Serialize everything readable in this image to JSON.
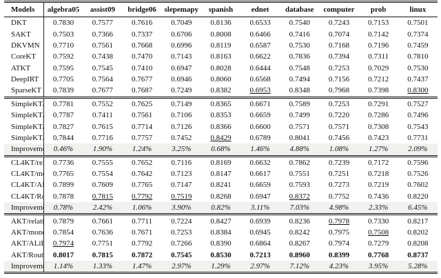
{
  "colors": {
    "text": "#111111",
    "rule": "#111111",
    "improvement_row_bg": "#f1f1ef"
  },
  "table": {
    "columns": [
      "Models",
      "algebra05",
      "assist09",
      "bridge06",
      "slepemapy",
      "spanish",
      "ednet",
      "database",
      "computer",
      "prob",
      "linux"
    ],
    "sections": [
      {
        "name": "baselines",
        "rows": [
          {
            "label": "DKT",
            "values": [
              "0.7830",
              "0.7577",
              "0.7616",
              "0.7049",
              "0.8136",
              "0.6533",
              "0.7540",
              "0.7243",
              "0.7153",
              "0.7501"
            ]
          },
          {
            "label": "SAKT",
            "values": [
              "0.7503",
              "0.7366",
              "0.7337",
              "0.6706",
              "0.8008",
              "0.6466",
              "0.7416",
              "0.7074",
              "0.7142",
              "0.7374"
            ]
          },
          {
            "label": "DKVMN",
            "values": [
              "0.7710",
              "0.7561",
              "0.7668",
              "0.6996",
              "0.8119",
              "0.6587",
              "0.7530",
              "0.7168",
              "0.7196",
              "0.7459"
            ]
          },
          {
            "label": "CoreKT",
            "values": [
              "0.7592",
              "0.7438",
              "0.7470",
              "0.7143",
              "0.8163",
              "0.6622",
              "0.7836",
              "0.7394",
              "0.7311",
              "0.7810"
            ]
          },
          {
            "label": "ATKT",
            "values": [
              "0.7595",
              "0.7545",
              "0.7410",
              "0.6947",
              "0.8028",
              "0.6444",
              "0.7548",
              "0.7253",
              "0.7029",
              "0.7530"
            ]
          },
          {
            "label": "DeepIRT",
            "values": [
              "0.7705",
              "0.7564",
              "0.7677",
              "0.6946",
              "0.8060",
              "0.6568",
              "0.7494",
              "0.7156",
              "0.7212",
              "0.7437"
            ]
          },
          {
            "label": "SparseKT",
            "values": [
              "0.7839",
              "0.7677",
              "0.7687",
              "0.7249",
              "0.8382",
              "0.6953",
              "0.8348",
              "0.7968",
              "0.7398",
              "0.8300"
            ],
            "underline": [
              5,
              9
            ]
          }
        ]
      },
      {
        "name": "simplekt",
        "rows": [
          {
            "label": "SimpleKT/relative",
            "values": [
              "0.7781",
              "0.7552",
              "0.7625",
              "0.7149",
              "0.8365",
              "0.6671",
              "0.7589",
              "0.7253",
              "0.7291",
              "0.7527"
            ]
          },
          {
            "label": "SimpleKT/monotonic",
            "values": [
              "0.7787",
              "0.7411",
              "0.7561",
              "0.7106",
              "0.8353",
              "0.6659",
              "0.7499",
              "0.7220",
              "0.7286",
              "0.7496"
            ]
          },
          {
            "label": "SimpleKT/ALiBi",
            "values": [
              "0.7827",
              "0.7615",
              "0.7714",
              "0.7126",
              "0.8366",
              "0.6600",
              "0.7571",
              "0.7571",
              "0.7308",
              "0.7543"
            ]
          },
          {
            "label": "SimpleKT/RouterKT",
            "values": [
              "0.7844",
              "0.7716",
              "0.7757",
              "0.7452",
              "0.8429",
              "0.6789",
              "0.8041",
              "0.7456",
              "0.7423",
              "0.7731"
            ],
            "underline": [
              4
            ]
          },
          {
            "label": "Improvement",
            "improvement": true,
            "values": [
              "0.46%",
              "1.90%",
              "1.24%",
              "3.25%",
              "0.68%",
              "1.46%",
              "4.88%",
              "1.08%",
              "1.27%",
              "2.09%"
            ]
          }
        ]
      },
      {
        "name": "cl4kt",
        "rows": [
          {
            "label": "CL4KT/relative",
            "values": [
              "0.7736",
              "0.7555",
              "0.7652",
              "0.7116",
              "0.8169",
              "0.6632",
              "0.7862",
              "0.7239",
              "0.7172",
              "0.7596"
            ]
          },
          {
            "label": "CL4KT/monotonic",
            "values": [
              "0.7765",
              "0.7554",
              "0.7642",
              "0.7123",
              "0.8147",
              "0.6617",
              "0.7551",
              "0.7251",
              "0.7218",
              "0.7526"
            ]
          },
          {
            "label": "CL4KT/ALiBi",
            "values": [
              "0.7899",
              "0.7609",
              "0.7765",
              "0.7147",
              "0.8241",
              "0.6659",
              "0.7593",
              "0.7273",
              "0.7219",
              "0.7602"
            ]
          },
          {
            "label": "CL4KT/RouterKT",
            "values": [
              "0.7878",
              "0.7815",
              "0.7792",
              "0.7519",
              "0.8268",
              "0.6947",
              "0.8372",
              "0.7752",
              "0.7436",
              "0.8220"
            ],
            "underline": [
              1,
              2,
              3,
              6
            ]
          },
          {
            "label": "Improvement",
            "improvement": true,
            "values": [
              "0.78%",
              "2.42%",
              "1.06%",
              "3.90%",
              "0.82%",
              "3.11%",
              "7.03%",
              "4.98%",
              "2.33%",
              "6.45%"
            ]
          }
        ]
      },
      {
        "name": "akt",
        "rows": [
          {
            "label": "AKT/relative",
            "values": [
              "0.7879",
              "0.7661",
              "0.7711",
              "0.7224",
              "0.8427",
              "0.6939",
              "0.8236",
              "0.7978",
              "0.7330",
              "0.8217"
            ],
            "underline": [
              7
            ]
          },
          {
            "label": "AKT/monotonic",
            "values": [
              "0.7854",
              "0.7636",
              "0.7671",
              "0.7253",
              "0.8384",
              "0.6945",
              "0.8242",
              "0.7975",
              "0.7508",
              "0.8202"
            ],
            "underline": [
              8
            ]
          },
          {
            "label": "AKT/ALiBi",
            "values": [
              "0.7974",
              "0.7751",
              "0.7792",
              "0.7266",
              "0.8390",
              "0.6864",
              "0.8267",
              "0.7974",
              "0.7279",
              "0.8208"
            ],
            "underline": [
              0
            ]
          },
          {
            "label": "AKT/RouterKT",
            "bold_values": true,
            "values": [
              "0.8017",
              "0.7815",
              "0.7872",
              "0.7545",
              "0.8530",
              "0.7213",
              "0.8960",
              "0.8399",
              "0.7768",
              "0.8737"
            ]
          },
          {
            "label": "Improvement",
            "improvement": true,
            "values": [
              "1.14%",
              "1.33%",
              "1.47%",
              "2.97%",
              "1.29%",
              "2.97%",
              "7.12%",
              "4.23%",
              "3.95%",
              "5.28%"
            ]
          }
        ]
      }
    ]
  }
}
